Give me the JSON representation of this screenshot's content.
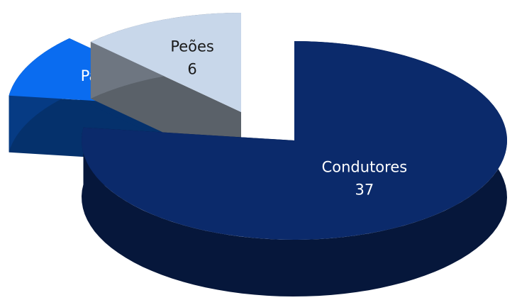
{
  "chart_data": {
    "type": "pie",
    "categories": [
      "Condutores",
      "Passageiros",
      "Peões"
    ],
    "values": [
      37,
      5,
      6
    ],
    "colors": [
      "#0b2a6b",
      "#0a6cf0",
      "#c8d7ea"
    ]
  }
}
